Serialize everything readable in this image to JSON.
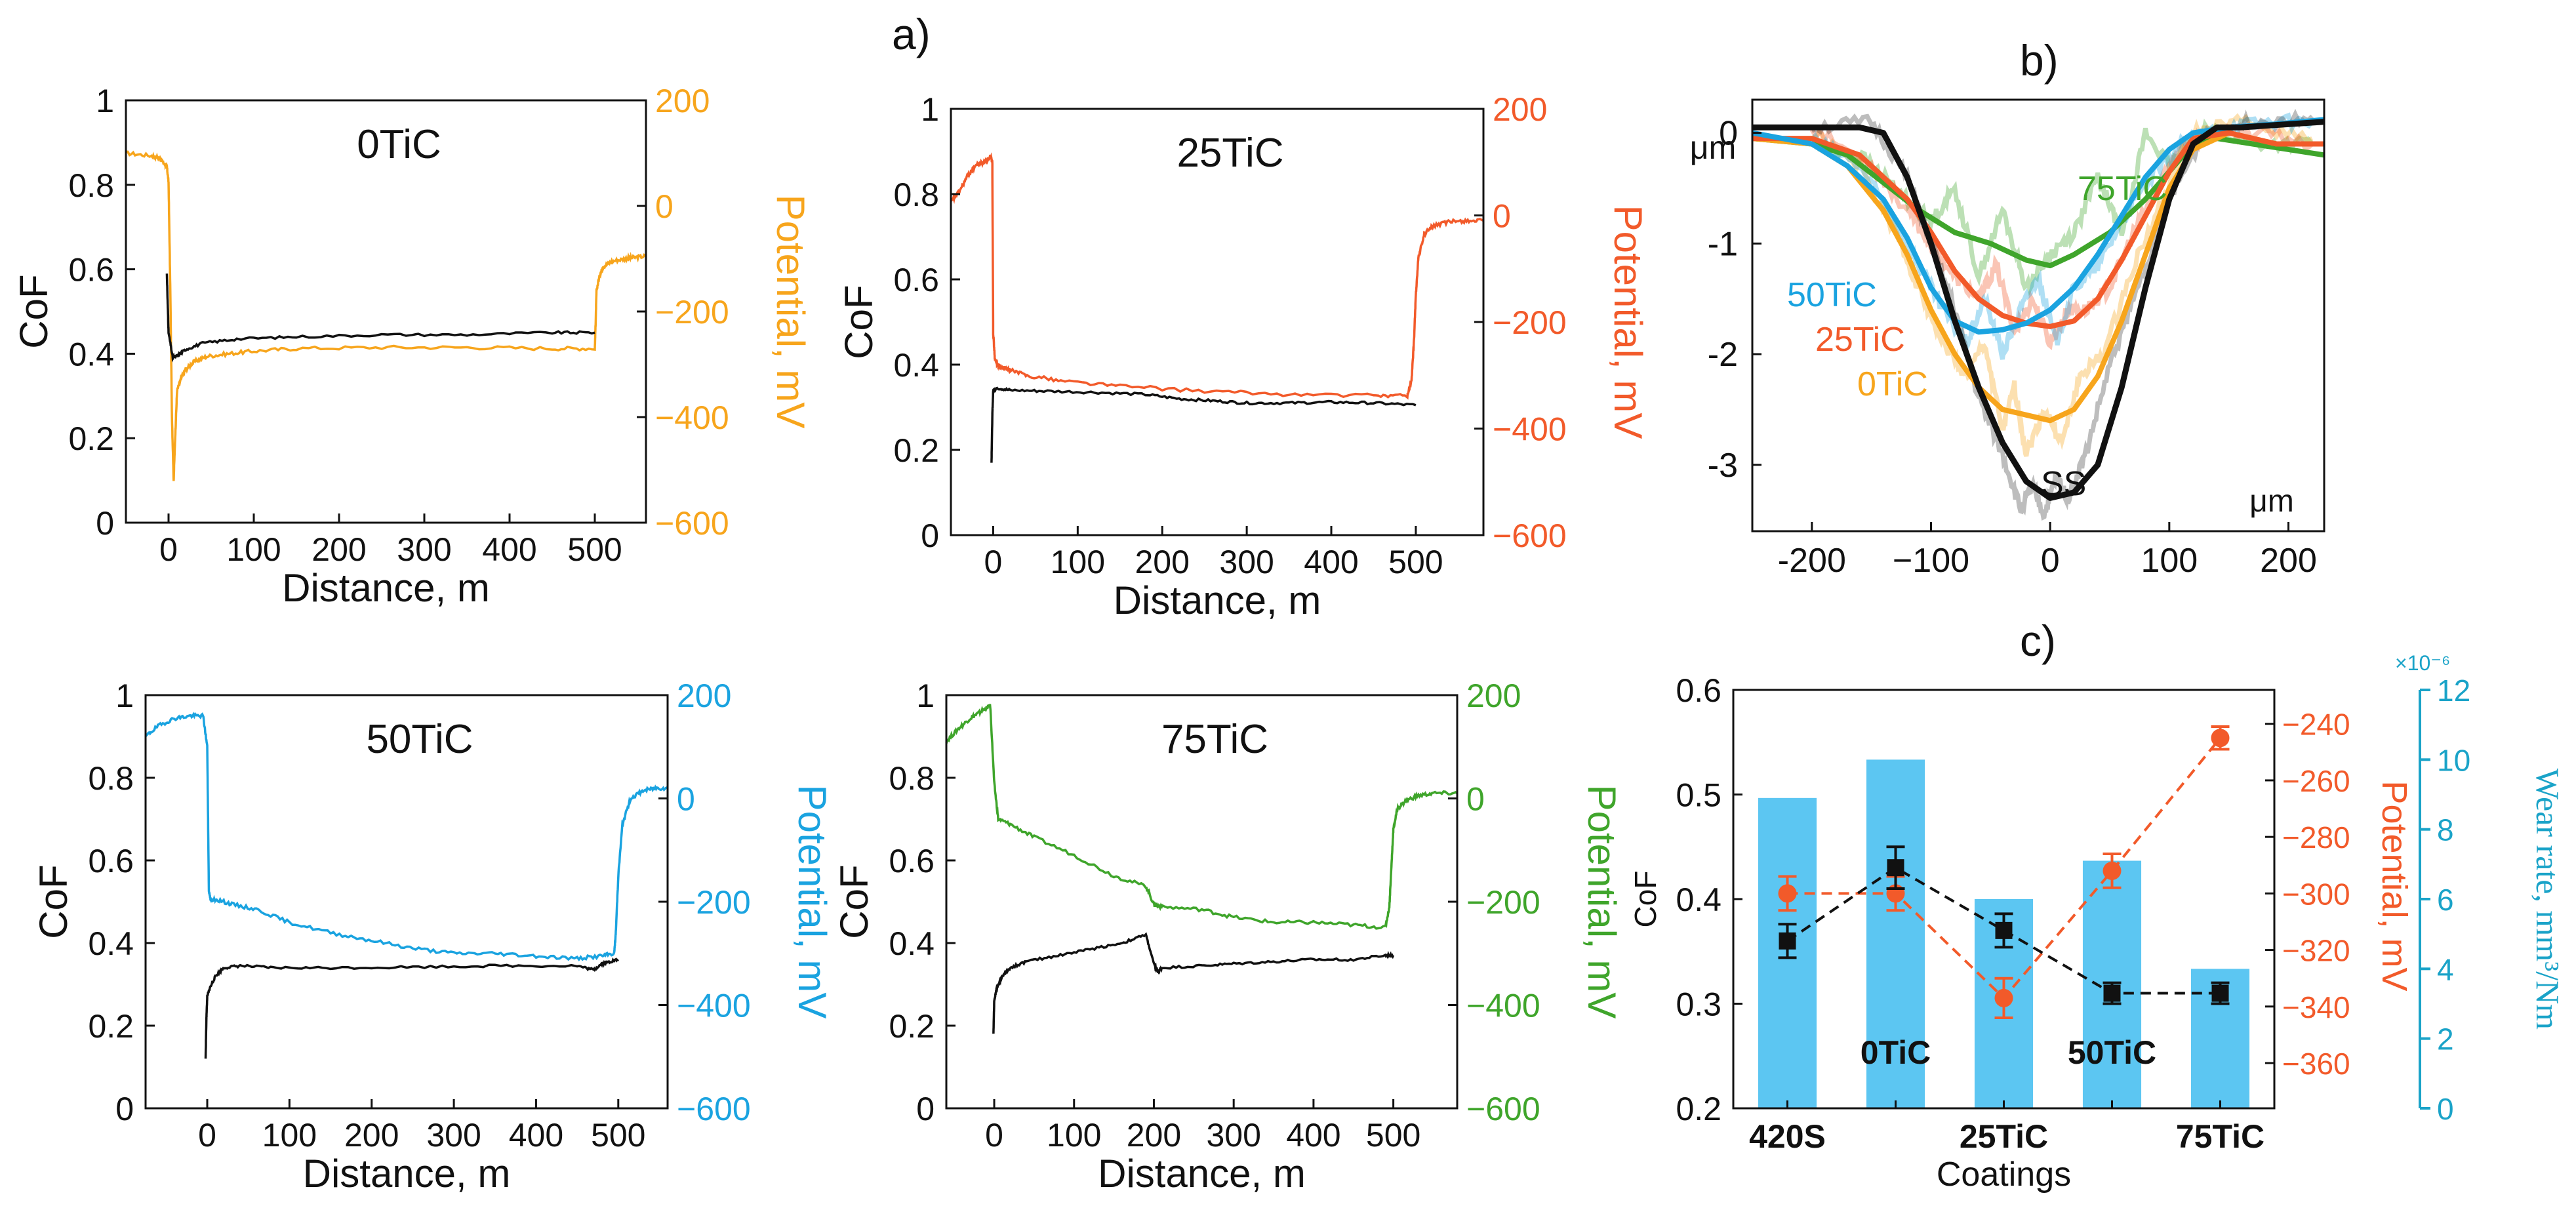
{
  "figure": {
    "panel_labels": [
      "a)",
      "b)",
      "c)"
    ]
  },
  "colors": {
    "orange": "#F7A51C",
    "red": "#F25A2A",
    "blue": "#1AA3E0",
    "green": "#3FA52B",
    "black": "#111111",
    "bar": "#5CC6F2",
    "wear_axis": "#1AA3C8"
  },
  "chart_data": [
    {
      "id": "cof_0TiC",
      "type": "line",
      "title": "0TiC",
      "xlabel": "Distance, m",
      "ylabel": "CoF",
      "y2label": "Potential, mV",
      "xlim": [
        -50,
        560
      ],
      "ylim": [
        0,
        1
      ],
      "y2lim": [
        -600,
        200
      ],
      "xticks": [
        0,
        100,
        200,
        300,
        400,
        500
      ],
      "yticks": [
        0,
        0.2,
        0.4,
        0.6,
        0.8,
        1
      ],
      "ytick_labels": [
        "0",
        "0.2",
        "0.4",
        "0.6",
        "0.8",
        "1"
      ],
      "y2ticks": [
        -600,
        -400,
        -200,
        0,
        200
      ],
      "potential_color": "orange",
      "cof": {
        "x": [
          -2,
          -1,
          0,
          5,
          10,
          20,
          40,
          80,
          150,
          250,
          350,
          450,
          500
        ],
        "y": [
          0.59,
          0.52,
          0.45,
          0.39,
          0.395,
          0.41,
          0.425,
          0.435,
          0.44,
          0.445,
          0.445,
          0.45,
          0.45
        ]
      },
      "potential": {
        "x": [
          -50,
          -20,
          -10,
          -5,
          -2,
          0,
          2,
          4,
          6,
          8,
          10,
          15,
          20,
          30,
          45,
          70,
          100,
          150,
          250,
          350,
          450,
          500,
          501,
          502,
          506,
          510,
          520,
          535,
          545,
          560
        ],
        "y": [
          100,
          95,
          90,
          80,
          75,
          45,
          -150,
          -400,
          -520,
          -430,
          -350,
          -325,
          -310,
          -295,
          -285,
          -280,
          -275,
          -270,
          -268,
          -268,
          -270,
          -270,
          -220,
          -160,
          -130,
          -115,
          -105,
          -100,
          -98,
          -95
        ]
      }
    },
    {
      "id": "cof_25TiC",
      "type": "line",
      "title": "25TiC",
      "xlabel": "Distance, m",
      "ylabel": "CoF",
      "y2label": "Potential, mV",
      "xlim": [
        -50,
        580
      ],
      "ylim": [
        0,
        1
      ],
      "y2lim": [
        -600,
        200
      ],
      "xticks": [
        0,
        100,
        200,
        300,
        400,
        500
      ],
      "yticks": [
        0,
        0.2,
        0.4,
        0.6,
        0.8,
        1
      ],
      "ytick_labels": [
        "0",
        "0.2",
        "0.4",
        "0.6",
        "0.8",
        "1"
      ],
      "y2ticks": [
        -600,
        -400,
        -200,
        0,
        200
      ],
      "potential_color": "red",
      "cof": {
        "x": [
          -2,
          -1,
          0,
          5,
          20,
          60,
          120,
          180,
          220,
          260,
          300,
          350,
          400,
          450,
          500
        ],
        "y": [
          0.17,
          0.28,
          0.34,
          0.345,
          0.34,
          0.338,
          0.335,
          0.33,
          0.32,
          0.315,
          0.31,
          0.31,
          0.312,
          0.31,
          0.305
        ]
      },
      "potential": {
        "x": [
          -50,
          -40,
          -30,
          -20,
          -10,
          -3,
          -1,
          0,
          2,
          5,
          10,
          20,
          40,
          80,
          150,
          250,
          350,
          450,
          490,
          495,
          498,
          500,
          503,
          510,
          520,
          540,
          560,
          580
        ],
        "y": [
          25,
          45,
          75,
          95,
          100,
          110,
          100,
          -220,
          -270,
          -280,
          -285,
          -290,
          -300,
          -310,
          -320,
          -330,
          -336,
          -338,
          -338,
          -310,
          -230,
          -150,
          -80,
          -35,
          -20,
          -12,
          -10,
          -10
        ]
      }
    },
    {
      "id": "cof_50TiC",
      "type": "line",
      "title": "50TiC",
      "xlabel": "Distance, m",
      "ylabel": "CoF",
      "y2label": "Potential, mV",
      "xlim": [
        -75,
        560
      ],
      "ylim": [
        0,
        1
      ],
      "y2lim": [
        -600,
        200
      ],
      "xticks": [
        0,
        100,
        200,
        300,
        400,
        500
      ],
      "yticks": [
        0,
        0.2,
        0.4,
        0.6,
        0.8,
        1
      ],
      "ytick_labels": [
        "0",
        "0.2",
        "0.4",
        "0.6",
        "0.8",
        "1"
      ],
      "y2ticks": [
        -600,
        -400,
        -200,
        0,
        200
      ],
      "potential_color": "blue",
      "cof": {
        "x": [
          -2,
          -1,
          0,
          3,
          10,
          20,
          40,
          80,
          150,
          250,
          350,
          450,
          470,
          480,
          490,
          500
        ],
        "y": [
          0.12,
          0.22,
          0.27,
          0.29,
          0.32,
          0.34,
          0.345,
          0.34,
          0.34,
          0.342,
          0.345,
          0.345,
          0.335,
          0.35,
          0.355,
          0.36
        ]
      },
      "potential": {
        "x": [
          -75,
          -60,
          -40,
          -20,
          -5,
          0,
          2,
          5,
          10,
          30,
          60,
          100,
          150,
          200,
          250,
          300,
          350,
          400,
          450,
          480,
          495,
          497,
          500,
          505,
          515,
          530,
          545,
          560
        ],
        "y": [
          120,
          140,
          155,
          160,
          160,
          100,
          -180,
          -200,
          -195,
          -205,
          -215,
          -240,
          -260,
          -275,
          -290,
          -300,
          -300,
          -305,
          -310,
          -305,
          -300,
          -260,
          -150,
          -50,
          0,
          15,
          20,
          20
        ]
      }
    },
    {
      "id": "cof_75TiC",
      "type": "line",
      "title": "75TiC",
      "xlabel": "Distance, m",
      "ylabel": "CoF",
      "y2label": "Potential, mV",
      "xlim": [
        -60,
        580
      ],
      "ylim": [
        0,
        1
      ],
      "y2lim": [
        -600,
        200
      ],
      "xticks": [
        0,
        100,
        200,
        300,
        400,
        500
      ],
      "yticks": [
        0,
        0.2,
        0.4,
        0.6,
        0.8,
        1
      ],
      "ytick_labels": [
        "0",
        "0.2",
        "0.4",
        "0.6",
        "0.8",
        "1"
      ],
      "y2ticks": [
        -600,
        -400,
        -200,
        0,
        200
      ],
      "potential_color": "green",
      "cof": {
        "x": [
          -1,
          0,
          3,
          10,
          20,
          40,
          80,
          120,
          160,
          190,
          200,
          205,
          210,
          260,
          300,
          350,
          400,
          450,
          490,
          500
        ],
        "y": [
          0.18,
          0.26,
          0.29,
          0.32,
          0.34,
          0.355,
          0.37,
          0.385,
          0.4,
          0.42,
          0.35,
          0.33,
          0.34,
          0.345,
          0.35,
          0.355,
          0.36,
          0.36,
          0.37,
          0.37
        ]
      },
      "potential": {
        "x": [
          -60,
          -45,
          -30,
          -20,
          -10,
          -5,
          0,
          5,
          20,
          50,
          100,
          150,
          190,
          200,
          210,
          260,
          300,
          350,
          400,
          450,
          490,
          495,
          498,
          500,
          505,
          515,
          530,
          550,
          580
        ],
        "y": [
          110,
          135,
          155,
          165,
          175,
          180,
          30,
          -40,
          -50,
          -75,
          -110,
          -150,
          -170,
          -205,
          -210,
          -215,
          -230,
          -240,
          -240,
          -245,
          -250,
          -210,
          -120,
          -60,
          -20,
          -5,
          5,
          10,
          10
        ]
      }
    },
    {
      "id": "profiles",
      "type": "line",
      "panel": "b)",
      "ylabel": "μm",
      "xunit_label": "μm",
      "xlim": [
        -250,
        230
      ],
      "ylim": [
        -3.6,
        0.3
      ],
      "xticks": [
        -200,
        -100,
        0,
        100,
        200
      ],
      "xtick_labels": [
        "-200",
        "−100",
        "0",
        "100",
        "200"
      ],
      "yticks": [
        -3,
        -2,
        -1,
        0
      ],
      "ytick_labels": [
        "-3",
        "-2",
        "-1",
        "0"
      ],
      "series": [
        {
          "name": "SS",
          "color": "black",
          "x": [
            -250,
            -160,
            -140,
            -120,
            -100,
            -80,
            -60,
            -40,
            -20,
            0,
            20,
            40,
            60,
            80,
            100,
            120,
            140,
            160,
            230
          ],
          "y": [
            0.05,
            0.05,
            0.0,
            -0.4,
            -1.0,
            -1.7,
            -2.3,
            -2.8,
            -3.15,
            -3.3,
            -3.25,
            -3.0,
            -2.3,
            -1.4,
            -0.6,
            -0.1,
            0.05,
            0.05,
            0.1
          ],
          "raw": {
            "x": [
              -200,
              -150,
              -120,
              -100,
              -80,
              -60,
              -40,
              -25,
              -15,
              -5,
              5,
              15,
              30,
              50,
              70,
              100,
              130,
              170,
              220
            ],
            "y": [
              0.05,
              0.1,
              -0.4,
              -1.0,
              -1.6,
              -2.4,
              -2.9,
              -3.4,
              -3.2,
              -3.45,
              -3.1,
              -3.3,
              -2.9,
              -2.1,
              -1.5,
              -0.6,
              0.0,
              0.1,
              0.15
            ]
          }
        },
        {
          "name": "0TiC",
          "color": "orange",
          "x": [
            -250,
            -200,
            -170,
            -140,
            -120,
            -100,
            -80,
            -60,
            -40,
            -20,
            0,
            20,
            40,
            60,
            80,
            100,
            120,
            150,
            190,
            230
          ],
          "y": [
            -0.05,
            -0.1,
            -0.3,
            -0.7,
            -1.1,
            -1.6,
            -2.0,
            -2.3,
            -2.5,
            -2.55,
            -2.6,
            -2.5,
            -2.2,
            -1.7,
            -1.1,
            -0.5,
            -0.15,
            0.0,
            -0.1,
            -0.1
          ],
          "raw": {
            "x": [
              -200,
              -160,
              -130,
              -110,
              -90,
              -70,
              -55,
              -40,
              -30,
              -20,
              -5,
              10,
              25,
              45,
              70,
              95,
              120,
              160,
              220
            ],
            "y": [
              0.0,
              -0.3,
              -0.9,
              -1.4,
              -1.9,
              -2.2,
              -1.9,
              -2.7,
              -2.3,
              -2.9,
              -2.5,
              -2.8,
              -2.2,
              -2.0,
              -1.2,
              -0.6,
              0.0,
              0.1,
              -0.05
            ]
          }
        },
        {
          "name": "25TiC",
          "color": "red",
          "x": [
            -250,
            -200,
            -160,
            -120,
            -100,
            -80,
            -60,
            -40,
            -20,
            0,
            20,
            40,
            60,
            80,
            100,
            120,
            150,
            190,
            230
          ],
          "y": [
            -0.05,
            -0.05,
            -0.2,
            -0.6,
            -0.9,
            -1.25,
            -1.5,
            -1.65,
            -1.72,
            -1.75,
            -1.7,
            -1.5,
            -1.15,
            -0.75,
            -0.35,
            -0.05,
            0.0,
            -0.1,
            -0.1
          ],
          "raw": {
            "x": [
              -200,
              -150,
              -120,
              -100,
              -80,
              -60,
              -45,
              -30,
              -15,
              0,
              15,
              30,
              50,
              70,
              90,
              110,
              140,
              180,
              220
            ],
            "y": [
              0.05,
              -0.3,
              -0.7,
              -1.0,
              -1.3,
              -1.5,
              -1.2,
              -1.8,
              -1.5,
              -1.9,
              -1.6,
              -1.6,
              -1.4,
              -0.9,
              -0.5,
              -0.1,
              0.0,
              0.0,
              -0.1
            ]
          }
        },
        {
          "name": "50TiC",
          "color": "blue",
          "x": [
            -250,
            -200,
            -170,
            -140,
            -120,
            -100,
            -80,
            -60,
            -40,
            -20,
            0,
            20,
            40,
            60,
            80,
            100,
            120,
            150,
            190,
            230
          ],
          "y": [
            0.0,
            -0.1,
            -0.3,
            -0.6,
            -0.95,
            -1.4,
            -1.7,
            -1.8,
            -1.78,
            -1.72,
            -1.6,
            -1.4,
            -1.1,
            -0.75,
            -0.4,
            -0.15,
            0.0,
            0.05,
            0.08,
            0.12
          ],
          "raw": {
            "x": [
              -200,
              -160,
              -130,
              -110,
              -90,
              -70,
              -55,
              -40,
              -25,
              -10,
              5,
              20,
              40,
              60,
              85,
              110,
              140,
              180,
              220
            ],
            "y": [
              -0.05,
              -0.3,
              -0.8,
              -1.2,
              -1.6,
              -1.9,
              -1.5,
              -2.0,
              -1.6,
              -1.3,
              -1.9,
              -1.4,
              -1.2,
              -0.8,
              -0.4,
              -0.1,
              0.05,
              0.1,
              0.1
            ]
          }
        },
        {
          "name": "75TiC",
          "color": "green",
          "x": [
            -250,
            -200,
            -170,
            -140,
            -110,
            -80,
            -50,
            -20,
            0,
            20,
            50,
            80,
            100,
            120,
            140,
            170,
            200,
            230
          ],
          "y": [
            -0.05,
            -0.1,
            -0.2,
            -0.45,
            -0.7,
            -0.9,
            -1.0,
            -1.15,
            -1.2,
            -1.1,
            -0.9,
            -0.6,
            -0.35,
            -0.1,
            -0.05,
            -0.1,
            -0.15,
            -0.2
          ],
          "raw": {
            "x": [
              -200,
              -160,
              -130,
              -100,
              -80,
              -60,
              -40,
              -20,
              0,
              20,
              40,
              60,
              80,
              100,
              130,
              170,
              220
            ],
            "y": [
              -0.1,
              -0.2,
              -0.5,
              -0.8,
              -0.5,
              -1.3,
              -0.7,
              -1.4,
              -1.1,
              -0.9,
              -0.4,
              -0.9,
              0.0,
              -0.3,
              0.05,
              -0.1,
              -0.1
            ]
          }
        }
      ]
    },
    {
      "id": "coatings",
      "type": "bar",
      "panel": "c)",
      "categories": [
        "420S",
        "0TiC",
        "25TiC",
        "50TiC",
        "75TiC"
      ],
      "xlabel": "Coatings",
      "ylabel": "CoF",
      "y2label": "Potential, mV",
      "y3label": "Wear rate, mm³/Nm",
      "y3_exponent": "×10⁻⁶",
      "ylim": [
        0.2,
        0.6
      ],
      "yticks": [
        0.2,
        0.3,
        0.4,
        0.5,
        0.6
      ],
      "ytick_labels": [
        "0.2",
        "0.3",
        "0.4",
        "0.5",
        "0.6"
      ],
      "y2lim": [
        -376,
        -228
      ],
      "y2ticks": [
        -360,
        -340,
        -320,
        -300,
        -280,
        -260,
        -240
      ],
      "y3lim": [
        0,
        12
      ],
      "y3ticks": [
        0,
        2,
        4,
        6,
        8,
        10,
        12
      ],
      "wear_rate": [
        8.9,
        10.0,
        6.0,
        7.1,
        4.0
      ],
      "cof": [
        0.36,
        0.43,
        0.37,
        0.31,
        0.31
      ],
      "cof_err": [
        0.016,
        0.02,
        0.016,
        0.01,
        0.01
      ],
      "potential": [
        -300,
        -300,
        -337,
        -292,
        -245
      ],
      "potential_err": [
        6,
        6,
        7,
        6,
        4
      ]
    }
  ]
}
